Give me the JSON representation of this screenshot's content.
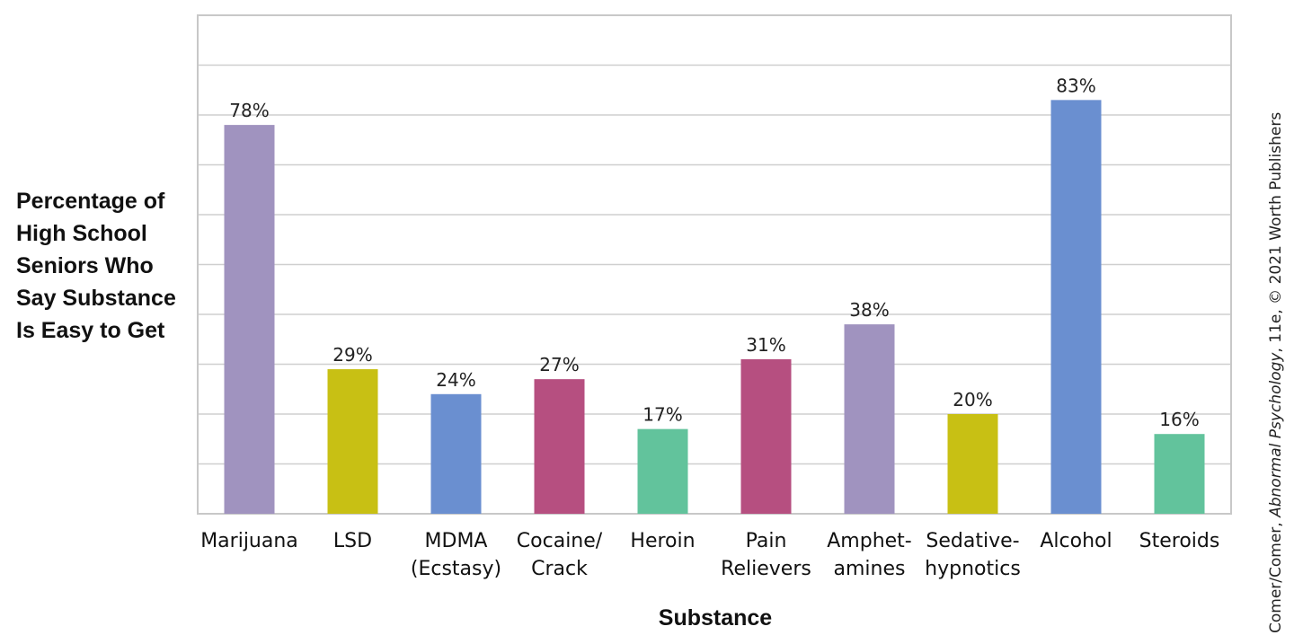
{
  "chart_data": {
    "type": "bar",
    "categories": [
      [
        "Marijuana"
      ],
      [
        "LSD"
      ],
      [
        "MDMA",
        "(Ecstasy)"
      ],
      [
        "Cocaine/",
        "Crack"
      ],
      [
        "Heroin"
      ],
      [
        "Pain",
        "Relievers"
      ],
      [
        "Amphet-",
        "amines"
      ],
      [
        "Sedative-",
        "hypnotics"
      ],
      [
        "Alcohol"
      ],
      [
        "Steroids"
      ]
    ],
    "values": [
      78,
      29,
      24,
      27,
      17,
      31,
      38,
      20,
      83,
      16
    ],
    "value_labels": [
      "78%",
      "29%",
      "24%",
      "27%",
      "17%",
      "31%",
      "38%",
      "20%",
      "83%",
      "16%"
    ],
    "colors": [
      "#a093bf",
      "#c8c014",
      "#6a8fd0",
      "#b64f80",
      "#62c39c",
      "#b64f80",
      "#a093bf",
      "#c8c014",
      "#6a8fd0",
      "#62c39c"
    ],
    "ylabel_lines": [
      "Percentage of",
      "High School",
      "Seniors Who",
      "Say Substance",
      "Is Easy to Get"
    ],
    "xlabel": "Substance",
    "ylim": [
      0,
      100
    ],
    "gridlines": [
      10,
      20,
      30,
      40,
      50,
      60,
      70,
      80,
      90,
      100
    ],
    "grid": true,
    "credit": {
      "prefix": "Comer/Comer, ",
      "italic": "Abnormal Psychology",
      "suffix": ", 11e, © 2021 Worth Publishers"
    }
  }
}
